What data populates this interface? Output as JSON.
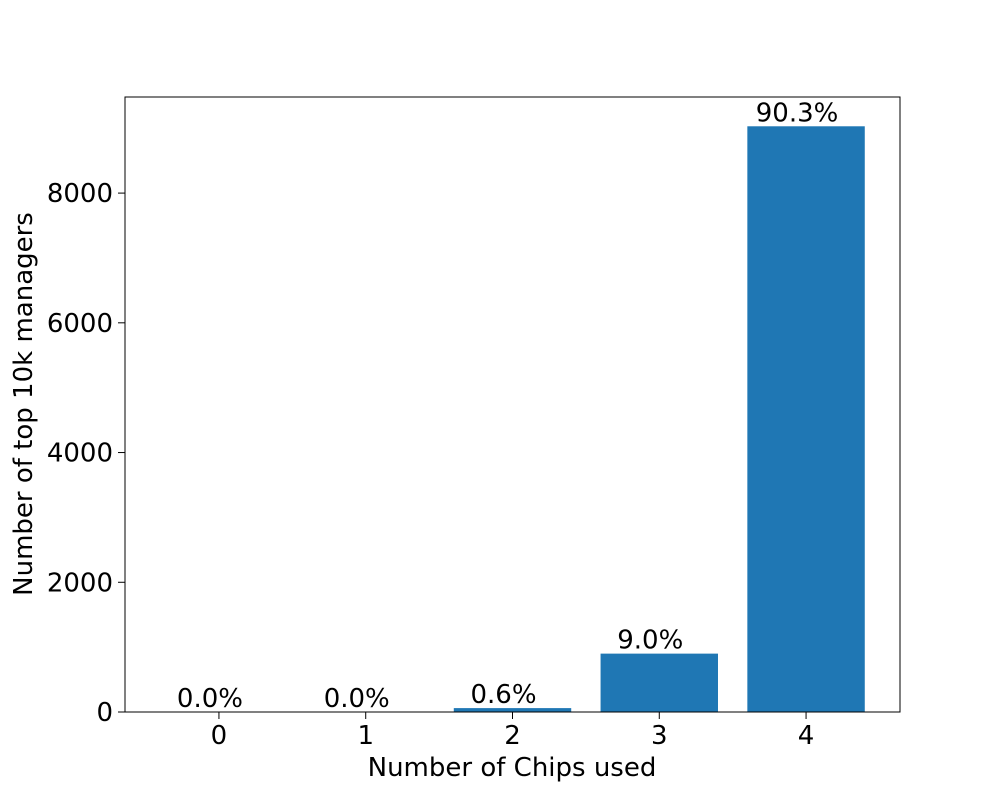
{
  "chart_data": {
    "type": "bar",
    "xlabel": "Number of Chips used",
    "ylabel": "Number of top 10k managers",
    "categories": [
      "0",
      "1",
      "2",
      "3",
      "4"
    ],
    "values": [
      0,
      0,
      60,
      900,
      9030
    ],
    "value_labels": [
      "0.0%",
      "0.0%",
      "0.6%",
      "9.0%",
      "90.3%"
    ],
    "color": "#1f77b4",
    "ylim": [
      0,
      9481.5
    ],
    "yticks": [
      0,
      2000,
      4000,
      6000,
      8000
    ],
    "grid": false
  }
}
